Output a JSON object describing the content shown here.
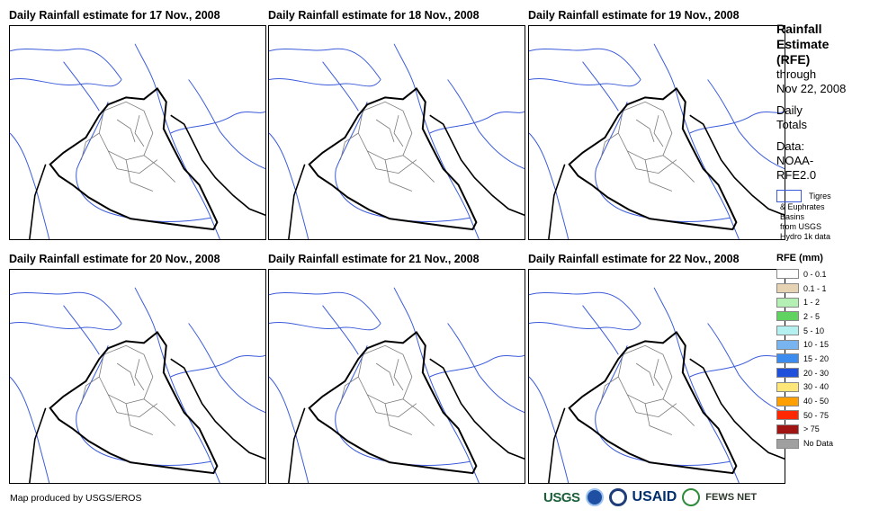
{
  "panels": [
    {
      "title": "Daily Rainfall estimate for 17 Nov., 2008"
    },
    {
      "title": "Daily Rainfall estimate for 18 Nov., 2008"
    },
    {
      "title": "Daily Rainfall estimate for 19 Nov., 2008"
    },
    {
      "title": "Daily Rainfall estimate for 20 Nov., 2008"
    },
    {
      "title": "Daily Rainfall estimate for 21 Nov., 2008"
    },
    {
      "title": "Daily Rainfall estimate for 22 Nov., 2008"
    }
  ],
  "side": {
    "title_lines": [
      "Rainfall",
      "Estimate",
      "(RFE)"
    ],
    "through": "through",
    "date": "Nov 22, 2008",
    "daily": "Daily",
    "totals": "Totals",
    "data_label": "Data:",
    "data_source_1": "NOAA-",
    "data_source_2": "RFE2.0",
    "basin_lines": [
      "Tigres",
      "& Euphrates",
      "Basins",
      "from USGS",
      "Hydro 1k data"
    ]
  },
  "legend": {
    "title": "RFE (mm)",
    "items": [
      {
        "label": "0 - 0.1",
        "color": "#ffffff"
      },
      {
        "label": "0.1 - 1",
        "color": "#e6d3b4"
      },
      {
        "label": "1 - 2",
        "color": "#b4f0b4"
      },
      {
        "label": "2 - 5",
        "color": "#5fd25f"
      },
      {
        "label": "5 - 10",
        "color": "#b4f0f0"
      },
      {
        "label": "10 - 15",
        "color": "#78b4f0"
      },
      {
        "label": "15 - 20",
        "color": "#3c8cf0"
      },
      {
        "label": "20 - 30",
        "color": "#1e50dc"
      },
      {
        "label": "30 - 40",
        "color": "#ffe678"
      },
      {
        "label": "40 - 50",
        "color": "#ffa000"
      },
      {
        "label": "50 - 75",
        "color": "#ff2800"
      },
      {
        "label": "> 75",
        "color": "#a01414"
      },
      {
        "label": "No Data",
        "color": "#a0a0a0"
      }
    ]
  },
  "footer": "Map produced by USGS/EROS",
  "logos": {
    "usgs": "USGS",
    "usaid": "USAID",
    "fews": "FEWS NET"
  },
  "colors": {
    "river": "#3b5bdb",
    "border": "#000000",
    "admin": "#7a7a7a"
  }
}
